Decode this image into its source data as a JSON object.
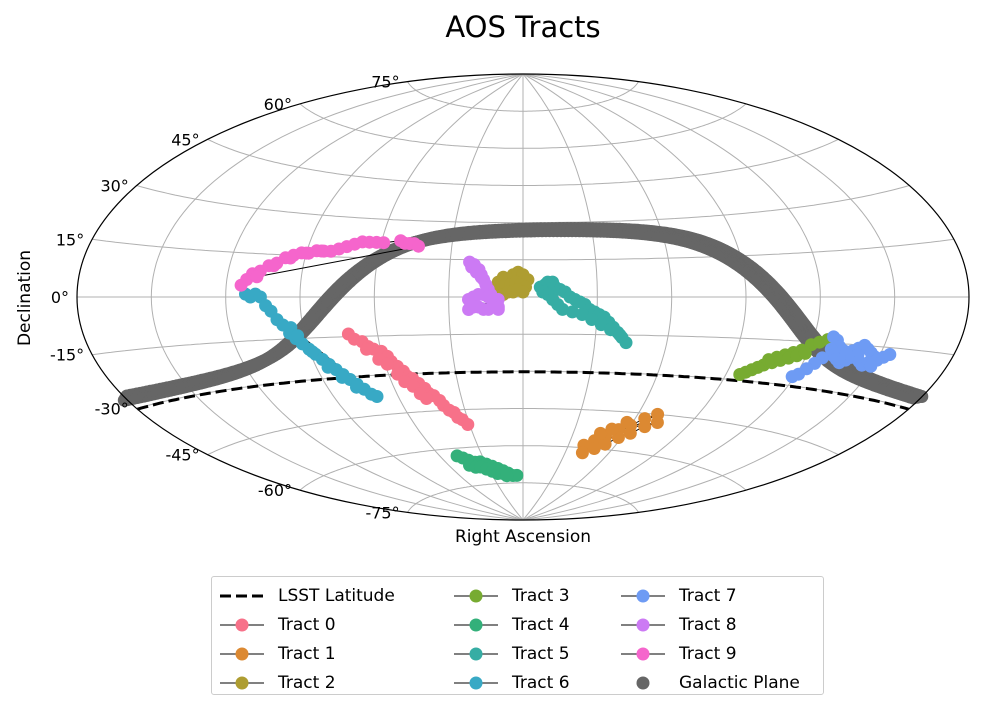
{
  "chart_data": {
    "type": "scatter",
    "projection": "aitoff",
    "title": "AOS Tracts",
    "xlabel": "Right Ascension",
    "ylabel": "Declination",
    "dec_ticks": [
      "75°",
      "60°",
      "45°",
      "30°",
      "15°",
      "0°",
      "-15°",
      "-30°",
      "-45°",
      "-60°",
      "-75°"
    ],
    "grid": true,
    "legend_placement": "below",
    "lsst_latitude": {
      "label": "LSST Latitude",
      "dec": -30.2,
      "color": "#000000",
      "style": "dashed"
    },
    "series": [
      {
        "name": "Tract 0",
        "color": "#f77189",
        "points": [
          [
            -72,
            -14
          ],
          [
            -70,
            -16
          ],
          [
            -67,
            -17
          ],
          [
            -65,
            -19
          ],
          [
            -63,
            -20
          ],
          [
            -60,
            -21
          ],
          [
            -58,
            -23
          ],
          [
            -57,
            -25
          ],
          [
            -55,
            -27
          ],
          [
            -53,
            -29
          ],
          [
            -52,
            -31
          ],
          [
            -50,
            -32
          ],
          [
            -48,
            -34
          ],
          [
            -46,
            -36
          ],
          [
            -45,
            -38
          ],
          [
            -43,
            -39
          ],
          [
            -41,
            -41
          ],
          [
            -40,
            -43
          ],
          [
            -38,
            -45
          ],
          [
            -36,
            -46
          ],
          [
            -35,
            -48
          ],
          [
            -33,
            -49
          ],
          [
            -31,
            -51
          ],
          [
            -66,
            -20
          ],
          [
            -62,
            -24
          ],
          [
            -59,
            -26
          ],
          [
            -56,
            -30
          ],
          [
            -54,
            -33
          ],
          [
            -51,
            -35
          ],
          [
            -49,
            -38
          ],
          [
            -47,
            -40
          ]
        ]
      },
      {
        "name": "Tract 1",
        "color": "#dc8932",
        "points": [
          [
            40,
            -59
          ],
          [
            45,
            -57
          ],
          [
            50,
            -55
          ],
          [
            55,
            -52
          ],
          [
            60,
            -50
          ],
          [
            65,
            -47
          ],
          [
            70,
            -45
          ],
          [
            42,
            -62
          ],
          [
            48,
            -60
          ],
          [
            53,
            -58
          ],
          [
            58,
            -55
          ],
          [
            63,
            -53
          ],
          [
            68,
            -50
          ],
          [
            73,
            -48
          ],
          [
            46,
            -54
          ],
          [
            51,
            -52
          ],
          [
            57,
            -49
          ]
        ]
      },
      {
        "name": "Tract 2",
        "color": "#ae9d31",
        "points": [
          [
            -12,
            3
          ],
          [
            -10,
            6
          ],
          [
            -8,
            8
          ],
          [
            -6,
            7
          ],
          [
            -4,
            9
          ],
          [
            -2,
            10
          ],
          [
            0,
            9
          ],
          [
            2,
            7
          ],
          [
            -11,
            1
          ],
          [
            -9,
            3
          ],
          [
            -7,
            5
          ],
          [
            -5,
            5
          ],
          [
            -3,
            6
          ],
          [
            -1,
            5
          ],
          [
            1,
            4
          ],
          [
            -12,
            -1
          ],
          [
            -10,
            0
          ],
          [
            -8,
            1
          ],
          [
            -6,
            2
          ],
          [
            -4,
            2
          ],
          [
            -2,
            3
          ],
          [
            0,
            2
          ]
        ]
      },
      {
        "name": "Tract 3",
        "color": "#77ab31",
        "points": [
          [
            105,
            -22
          ],
          [
            108,
            -21
          ],
          [
            111,
            -20
          ],
          [
            114,
            -19
          ],
          [
            117,
            -18
          ],
          [
            120,
            -16
          ],
          [
            123,
            -15
          ],
          [
            126,
            -14
          ],
          [
            104,
            -24
          ],
          [
            107,
            -23
          ],
          [
            110,
            -22
          ],
          [
            113,
            -21
          ],
          [
            116,
            -20
          ],
          [
            119,
            -19
          ],
          [
            102,
            -25
          ],
          [
            100,
            -26
          ],
          [
            98,
            -27
          ],
          [
            96,
            -28
          ]
        ]
      },
      {
        "name": "Tract 4",
        "color": "#33b07a",
        "points": [
          [
            -48,
            -63
          ],
          [
            -45,
            -64
          ],
          [
            -42,
            -65
          ],
          [
            -38,
            -66
          ],
          [
            -34,
            -66
          ],
          [
            -30,
            -67
          ],
          [
            -26,
            -68
          ],
          [
            -22,
            -69
          ],
          [
            -18,
            -70
          ],
          [
            -14,
            -71
          ],
          [
            -10,
            -72
          ],
          [
            -6,
            -72
          ],
          [
            -44,
            -67
          ],
          [
            -40,
            -68
          ],
          [
            -36,
            -68
          ],
          [
            -32,
            -69
          ],
          [
            -28,
            -70
          ],
          [
            -24,
            -71
          ],
          [
            -20,
            -71
          ],
          [
            -16,
            -72
          ]
        ]
      },
      {
        "name": "Tract 5",
        "color": "#36ada4",
        "points": [
          [
            7,
            4
          ],
          [
            9,
            5
          ],
          [
            10,
            6
          ],
          [
            12,
            6
          ],
          [
            13,
            4
          ],
          [
            15,
            3
          ],
          [
            17,
            2
          ],
          [
            19,
            0
          ],
          [
            21,
            -1
          ],
          [
            23,
            -2
          ],
          [
            25,
            -3
          ],
          [
            27,
            -5
          ],
          [
            29,
            -6
          ],
          [
            31,
            -7
          ],
          [
            33,
            -8
          ],
          [
            35,
            -10
          ],
          [
            37,
            -12
          ],
          [
            39,
            -14
          ],
          [
            41,
            -16
          ],
          [
            43,
            -18
          ],
          [
            8,
            2
          ],
          [
            10,
            1
          ],
          [
            12,
            -1
          ],
          [
            14,
            -3
          ],
          [
            16,
            -5
          ],
          [
            20,
            -6
          ],
          [
            24,
            -7
          ],
          [
            28,
            -9
          ],
          [
            32,
            -11
          ],
          [
            36,
            -13
          ],
          [
            40,
            -15
          ]
        ]
      },
      {
        "name": "Tract 6",
        "color": "#38a9c5",
        "points": [
          [
            -112,
            1
          ],
          [
            -110,
            0
          ],
          [
            -108,
            1
          ],
          [
            -106,
            0
          ],
          [
            -104,
            -3
          ],
          [
            -102,
            -5
          ],
          [
            -100,
            -8
          ],
          [
            -98,
            -10
          ],
          [
            -96,
            -13
          ],
          [
            -94,
            -15
          ],
          [
            -92,
            -17
          ],
          [
            -90,
            -19
          ],
          [
            -88,
            -21
          ],
          [
            -86,
            -23
          ],
          [
            -84,
            -25
          ],
          [
            -82,
            -27
          ],
          [
            -80,
            -29
          ],
          [
            -78,
            -31
          ],
          [
            -76,
            -33
          ],
          [
            -74,
            -35
          ],
          [
            -72,
            -37
          ],
          [
            -70,
            -38
          ],
          [
            -95,
            -11
          ],
          [
            -93,
            -14
          ],
          [
            -89,
            -20
          ],
          [
            -85,
            -26
          ],
          [
            -81,
            -30
          ],
          [
            -77,
            -34
          ]
        ]
      },
      {
        "name": "Tract 7",
        "color": "#6e9bf4",
        "points": [
          [
            128,
            -13
          ],
          [
            130,
            -14
          ],
          [
            132,
            -16
          ],
          [
            134,
            -17
          ],
          [
            136,
            -18
          ],
          [
            138,
            -17
          ],
          [
            140,
            -16
          ],
          [
            142,
            -15
          ],
          [
            144,
            -16
          ],
          [
            146,
            -17
          ],
          [
            148,
            -18
          ],
          [
            150,
            -19
          ],
          [
            152,
            -18
          ],
          [
            154,
            -17
          ],
          [
            129,
            -17
          ],
          [
            131,
            -19
          ],
          [
            133,
            -20
          ],
          [
            135,
            -21
          ],
          [
            137,
            -20
          ],
          [
            139,
            -19
          ],
          [
            141,
            -18
          ],
          [
            143,
            -20
          ],
          [
            145,
            -21
          ],
          [
            147,
            -20
          ],
          [
            149,
            -21
          ],
          [
            127,
            -20
          ],
          [
            125,
            -22
          ],
          [
            123,
            -24
          ],
          [
            121,
            -26
          ],
          [
            119,
            -27
          ]
        ]
      },
      {
        "name": "Tract 8",
        "color": "#cc7af4",
        "points": [
          [
            -22,
            14
          ],
          [
            -20,
            13
          ],
          [
            -18,
            11
          ],
          [
            -17,
            9
          ],
          [
            -16,
            7
          ],
          [
            -15,
            5
          ],
          [
            -14,
            3
          ],
          [
            -13,
            1
          ],
          [
            -12,
            -1
          ],
          [
            -11,
            -2
          ],
          [
            -10,
            -4
          ],
          [
            -22,
            -1
          ],
          [
            -20,
            0
          ],
          [
            -18,
            1
          ],
          [
            -16,
            1
          ],
          [
            -14,
            0
          ],
          [
            -12,
            -1
          ],
          [
            -10,
            -1
          ],
          [
            -22,
            -5
          ],
          [
            -20,
            -4
          ],
          [
            -18,
            -4
          ],
          [
            -16,
            -5
          ],
          [
            -14,
            -5
          ],
          [
            -12,
            -4
          ],
          [
            -10,
            -5
          ],
          [
            -21,
            12
          ],
          [
            -19,
            10
          ],
          [
            -17,
            8
          ]
        ]
      },
      {
        "name": "Tract 9",
        "color": "#f565cc",
        "points": [
          [
            -114,
            4
          ],
          [
            -112,
            6
          ],
          [
            -110,
            8
          ],
          [
            -107,
            9
          ],
          [
            -104,
            11
          ],
          [
            -101,
            12
          ],
          [
            -98,
            14
          ],
          [
            -95,
            15
          ],
          [
            -92,
            16
          ],
          [
            -89,
            16
          ],
          [
            -86,
            17
          ],
          [
            -83,
            17
          ],
          [
            -80,
            17
          ],
          [
            -77,
            18
          ],
          [
            -74,
            19
          ],
          [
            -71,
            20
          ],
          [
            -68,
            21
          ],
          [
            -65,
            21
          ],
          [
            -62,
            21
          ],
          [
            -59,
            21
          ],
          [
            -52,
            22
          ],
          [
            -50,
            21
          ],
          [
            -48,
            21
          ],
          [
            -46,
            21
          ],
          [
            -44,
            20
          ],
          [
            -108,
            7
          ],
          [
            -102,
            11
          ],
          [
            -96,
            14
          ],
          [
            -90,
            16
          ],
          [
            -84,
            17
          ]
        ]
      },
      {
        "name": "Galactic Plane",
        "color": "#666666",
        "marker_only": true,
        "generated": "galactic-equator"
      }
    ],
    "legend": [
      {
        "label": "LSST Latitude",
        "kind": "dashed",
        "color": "#000000"
      },
      {
        "label": "Tract 0",
        "kind": "line-marker",
        "color": "#f77189"
      },
      {
        "label": "Tract 1",
        "kind": "line-marker",
        "color": "#dc8932"
      },
      {
        "label": "Tract 2",
        "kind": "line-marker",
        "color": "#ae9d31"
      },
      {
        "label": "Tract 3",
        "kind": "line-marker",
        "color": "#77ab31"
      },
      {
        "label": "Tract 4",
        "kind": "line-marker",
        "color": "#33b07a"
      },
      {
        "label": "Tract 5",
        "kind": "line-marker",
        "color": "#36ada4"
      },
      {
        "label": "Tract 6",
        "kind": "line-marker",
        "color": "#38a9c5"
      },
      {
        "label": "Tract 7",
        "kind": "line-marker",
        "color": "#6e9bf4"
      },
      {
        "label": "Tract 8",
        "kind": "line-marker",
        "color": "#cc7af4"
      },
      {
        "label": "Tract 9",
        "kind": "line-marker",
        "color": "#f565cc"
      },
      {
        "label": "Galactic Plane",
        "kind": "marker",
        "color": "#666666"
      }
    ]
  }
}
